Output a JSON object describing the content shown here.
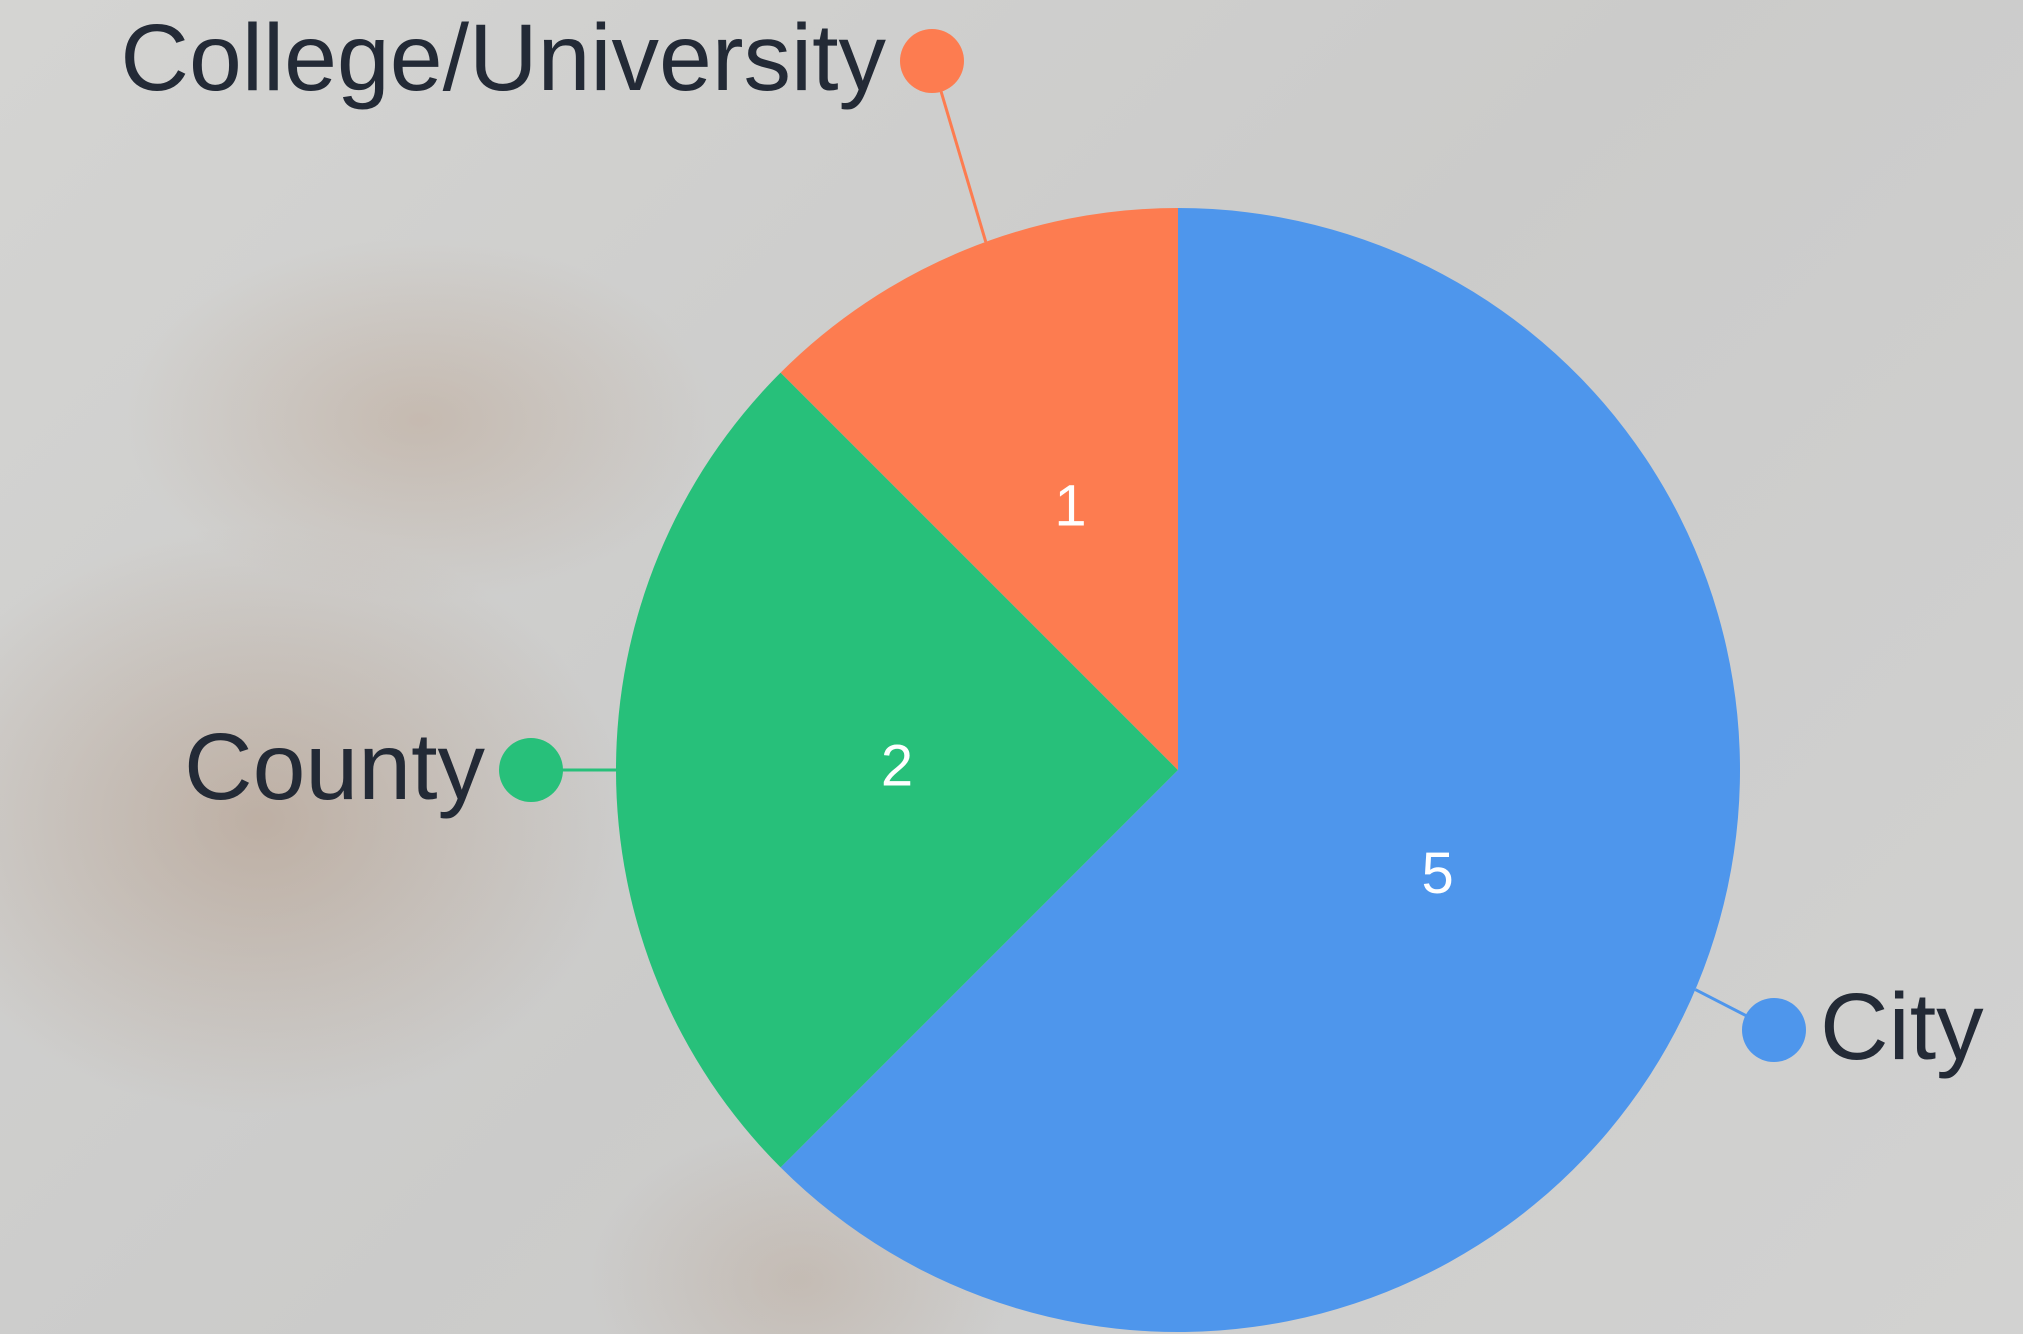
{
  "chart_data": {
    "type": "pie",
    "categories": [
      "City",
      "County",
      "College/University"
    ],
    "values": [
      5,
      2,
      1
    ],
    "colors": [
      "#4e96ec",
      "#27c07a",
      "#fd7c50"
    ]
  }
}
